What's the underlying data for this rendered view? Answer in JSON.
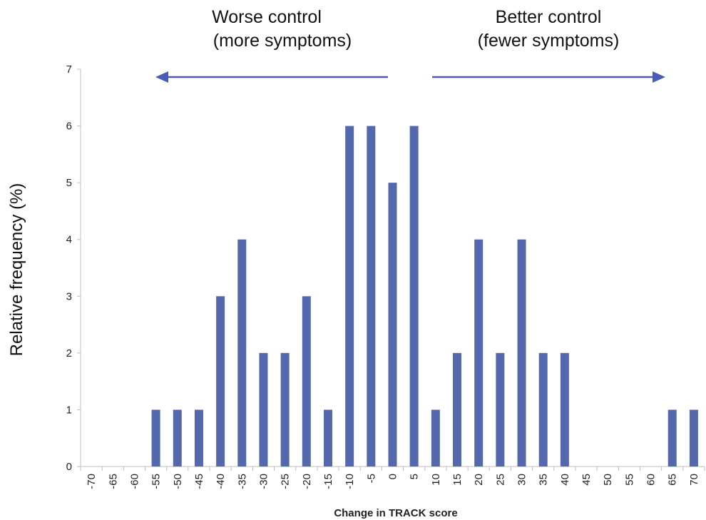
{
  "chart_data": {
    "type": "bar",
    "xlabel": "Change in TRACK score",
    "ylabel": "Relative frequency (%)",
    "ylim": [
      0,
      7
    ],
    "yticks": [
      0,
      1,
      2,
      3,
      4,
      5,
      6,
      7
    ],
    "grid": false,
    "bar_color": "#5468AE",
    "arrow_color": "#4A5DB5",
    "categories": [
      -70,
      -65,
      -60,
      -55,
      -50,
      -45,
      -40,
      -35,
      -30,
      -25,
      -20,
      -15,
      -10,
      -5,
      0,
      5,
      10,
      15,
      20,
      25,
      30,
      35,
      40,
      45,
      50,
      55,
      60,
      65,
      70
    ],
    "values": [
      0,
      0,
      0,
      1,
      1,
      1,
      3,
      4,
      2,
      2,
      3,
      1,
      6,
      6,
      5,
      6,
      1,
      2,
      4,
      2,
      4,
      2,
      2,
      0,
      0,
      0,
      0,
      1,
      1
    ],
    "annotations": {
      "left": {
        "line1": "Worse control",
        "line2": "(more symptoms)"
      },
      "right": {
        "line1": "Better control",
        "line2": "(fewer symptoms)"
      }
    }
  }
}
